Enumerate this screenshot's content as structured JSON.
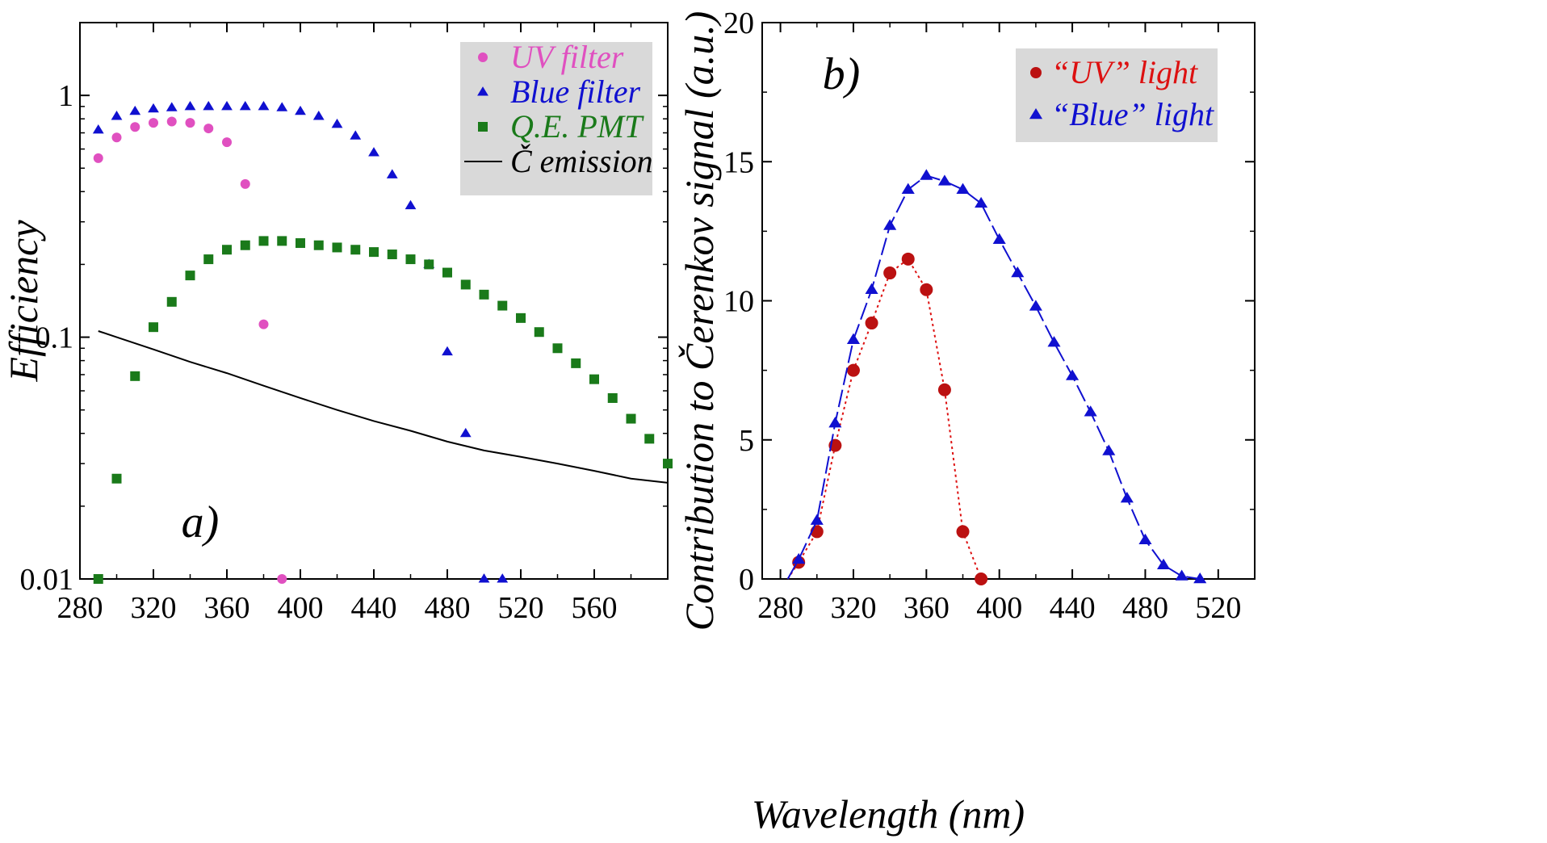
{
  "chart_data": [
    {
      "type": "scatter",
      "panel_label": "a)",
      "xlabel": "Wavelength (nm)",
      "ylabel": "Efficiency",
      "xlim": [
        280,
        600
      ],
      "ylim": [
        0.01,
        2
      ],
      "yscale": "log",
      "xticks": [
        "280",
        "320",
        "360",
        "400",
        "440",
        "480",
        "520",
        "560"
      ],
      "yticks": [
        "0.01",
        "0.1",
        "1"
      ],
      "legend_placement": "top-right",
      "series": [
        {
          "name": "UV filter",
          "color": "#e050c0",
          "marker": "circle",
          "x": [
            290,
            300,
            310,
            320,
            330,
            340,
            350,
            360,
            370,
            380,
            390
          ],
          "y": [
            0.55,
            0.67,
            0.74,
            0.77,
            0.78,
            0.77,
            0.73,
            0.64,
            0.43,
            0.113,
            0.01
          ]
        },
        {
          "name": "Blue filter",
          "color": "#1010d0",
          "marker": "triangle",
          "x": [
            290,
            300,
            310,
            320,
            330,
            340,
            350,
            360,
            370,
            380,
            390,
            400,
            410,
            420,
            430,
            440,
            450,
            460,
            470,
            480,
            490,
            500,
            510
          ],
          "y": [
            0.72,
            0.82,
            0.86,
            0.88,
            0.89,
            0.9,
            0.9,
            0.9,
            0.9,
            0.9,
            0.89,
            0.86,
            0.82,
            0.76,
            0.68,
            0.58,
            0.47,
            0.35,
            0.2,
            0.087,
            0.04,
            0.01,
            0.01
          ]
        },
        {
          "name": "Q.E. PMT",
          "color": "#1a7a1a",
          "marker": "square",
          "x": [
            290,
            300,
            310,
            320,
            330,
            340,
            350,
            360,
            370,
            380,
            390,
            400,
            410,
            420,
            430,
            440,
            450,
            460,
            470,
            480,
            490,
            500,
            510,
            520,
            530,
            540,
            550,
            560,
            570,
            580,
            590,
            600
          ],
          "y": [
            0.01,
            0.026,
            0.069,
            0.11,
            0.14,
            0.18,
            0.21,
            0.23,
            0.24,
            0.25,
            0.25,
            0.245,
            0.24,
            0.235,
            0.23,
            0.225,
            0.22,
            0.21,
            0.2,
            0.185,
            0.165,
            0.15,
            0.135,
            0.12,
            0.105,
            0.09,
            0.078,
            0.067,
            0.056,
            0.046,
            0.038,
            0.03
          ]
        },
        {
          "name": "Č emission",
          "color": "#000000",
          "marker": "line",
          "x": [
            290,
            300,
            320,
            340,
            360,
            380,
            400,
            420,
            440,
            460,
            480,
            500,
            520,
            540,
            560,
            580,
            600
          ],
          "y": [
            0.106,
            0.1,
            0.089,
            0.079,
            0.071,
            0.063,
            0.056,
            0.05,
            0.045,
            0.041,
            0.037,
            0.034,
            0.032,
            0.03,
            0.028,
            0.026,
            0.025
          ]
        }
      ]
    },
    {
      "type": "line",
      "panel_label": "b)",
      "xlabel": "Wavelength (nm)",
      "ylabel": "Contribution to Čerenkov signal (a.u.)",
      "xlim": [
        270,
        540
      ],
      "ylim": [
        0,
        20
      ],
      "xticks": [
        "280",
        "320",
        "360",
        "400",
        "440",
        "480",
        "520"
      ],
      "yticks": [
        "0",
        "5",
        "10",
        "15",
        "20"
      ],
      "legend_placement": "top-right",
      "series": [
        {
          "name": "“UV” light",
          "color": "#dd1111",
          "marker": "circle",
          "line": "dotted",
          "x": [
            290,
            300,
            310,
            320,
            330,
            340,
            350,
            360,
            370,
            380,
            390
          ],
          "y": [
            0.6,
            1.7,
            4.8,
            7.5,
            9.2,
            11.0,
            11.5,
            10.4,
            6.8,
            1.7,
            0.0
          ]
        },
        {
          "name": "“Blue” light",
          "color": "#1010d0",
          "marker": "triangle",
          "line": "dashed",
          "x": [
            290,
            300,
            310,
            320,
            330,
            340,
            350,
            360,
            370,
            380,
            390,
            400,
            410,
            420,
            430,
            440,
            450,
            460,
            470,
            480,
            490,
            500,
            510
          ],
          "y": [
            0.7,
            2.1,
            5.6,
            8.6,
            10.4,
            12.7,
            14.0,
            14.5,
            14.3,
            14.0,
            13.5,
            12.2,
            11.0,
            9.8,
            8.5,
            7.3,
            6.0,
            4.6,
            2.9,
            1.4,
            0.5,
            0.1,
            0.0
          ]
        }
      ]
    }
  ]
}
